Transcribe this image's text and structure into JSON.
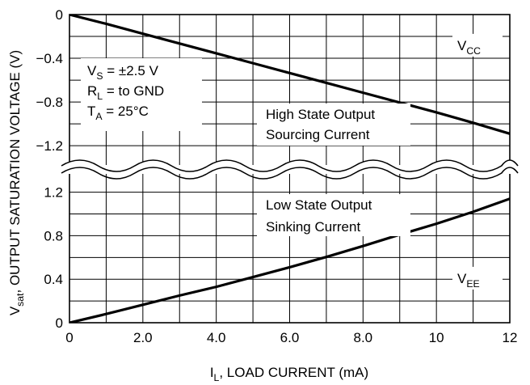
{
  "chart_data": {
    "type": "line",
    "x_axis": {
      "label_main": "I",
      "label_sub": "L",
      "label_rest": ", LOAD CURRENT (mA)",
      "range": [
        0,
        12
      ],
      "ticks": [
        0,
        2,
        4,
        6,
        8,
        10,
        12
      ],
      "tick_labels": [
        "0",
        "2.0",
        "4.0",
        "6.0",
        "8.0",
        "10",
        "12"
      ],
      "grid_step": 1
    },
    "y_axis": {
      "label_main": "V",
      "label_sub": "sat",
      "label_rest": ", OUTPUT SATURATION VOLTAGE (V)",
      "top_panel": {
        "range": [
          -1.48,
          0
        ],
        "ticks": [
          0,
          -0.4,
          -0.8,
          -1.2
        ],
        "tick_labels": [
          "0",
          "−0.4",
          "−0.8",
          "−1.2"
        ],
        "grid_step": 0.2
      },
      "bottom_panel": {
        "range": [
          0,
          1.48
        ],
        "ticks": [
          0,
          0.4,
          0.8,
          1.2
        ],
        "tick_labels": [
          "0",
          "0.4",
          "0.8",
          "1.2"
        ],
        "grid_step": 0.2
      }
    },
    "grid": true,
    "axis_break": true,
    "series": [
      {
        "name": "VCC",
        "label_main": "V",
        "label_sub": "CC",
        "panel": "top",
        "x": [
          0,
          1,
          2,
          3,
          4,
          5,
          6,
          7,
          8,
          9,
          10,
          11,
          12
        ],
        "y": [
          0,
          -0.085,
          -0.175,
          -0.265,
          -0.355,
          -0.445,
          -0.535,
          -0.625,
          -0.715,
          -0.805,
          -0.895,
          -0.99,
          -1.09
        ]
      },
      {
        "name": "VEE",
        "label_main": "V",
        "label_sub": "EE",
        "panel": "bottom",
        "x": [
          0,
          1,
          2,
          3,
          4,
          5,
          6,
          7,
          8,
          9,
          10,
          11,
          12
        ],
        "y": [
          0,
          0.08,
          0.165,
          0.25,
          0.33,
          0.42,
          0.51,
          0.605,
          0.705,
          0.81,
          0.91,
          1.02,
          1.14
        ]
      }
    ],
    "annotations": {
      "conditions": [
        {
          "main": "V",
          "sub": "S",
          "rest": " = ±2.5 V"
        },
        {
          "main": "R",
          "sub": "L",
          "rest": " = to GND"
        },
        {
          "main": "T",
          "sub": "A",
          "rest": " = 25°C"
        }
      ],
      "high_state": [
        "High State Output",
        "Sourcing Current"
      ],
      "low_state": [
        "Low State Output",
        "Sinking Current"
      ]
    }
  }
}
